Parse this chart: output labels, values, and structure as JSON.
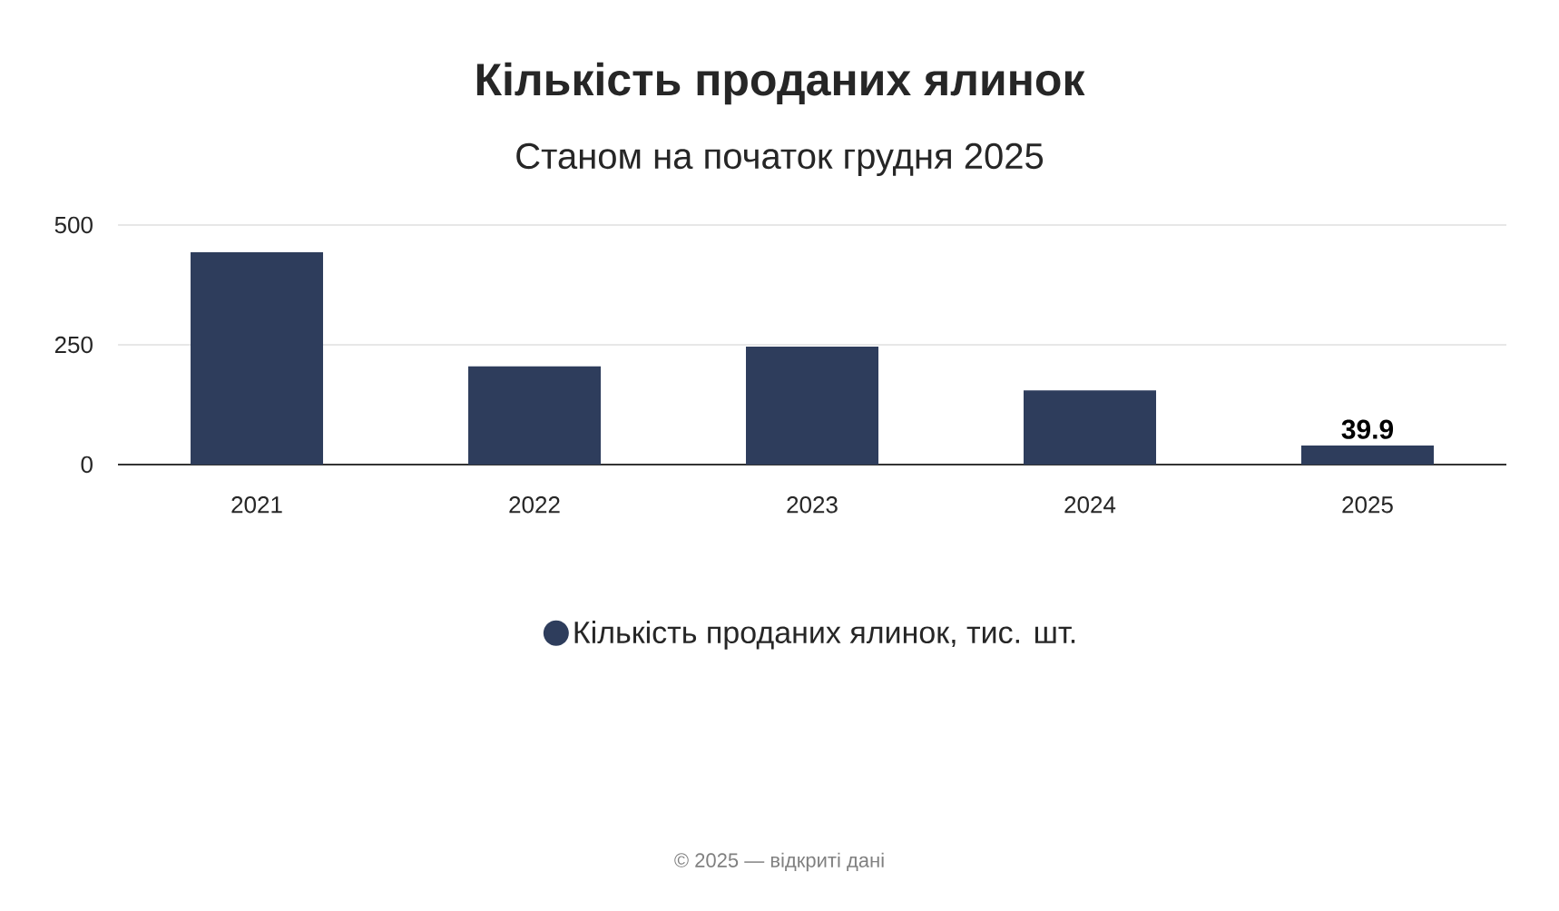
{
  "chart_data": {
    "type": "bar",
    "title": "Кількість проданих ялинок",
    "subtitle": "Станом на початок грудня 2025",
    "categories": [
      "2021",
      "2022",
      "2023",
      "2024",
      "2025"
    ],
    "series": [
      {
        "name": "Кількість проданих ялинок, тис. шт.",
        "color": "#2e3d5c",
        "values": [
          443,
          205,
          246,
          155,
          39.9
        ],
        "value_labels": [
          null,
          null,
          null,
          null,
          "39.9"
        ]
      }
    ],
    "ylim": [
      0,
      500
    ],
    "yticks": [
      0,
      250,
      500
    ],
    "grid": "y",
    "legend": "bottom",
    "annotations": [
      "© 2025 — відкриті дані"
    ]
  }
}
